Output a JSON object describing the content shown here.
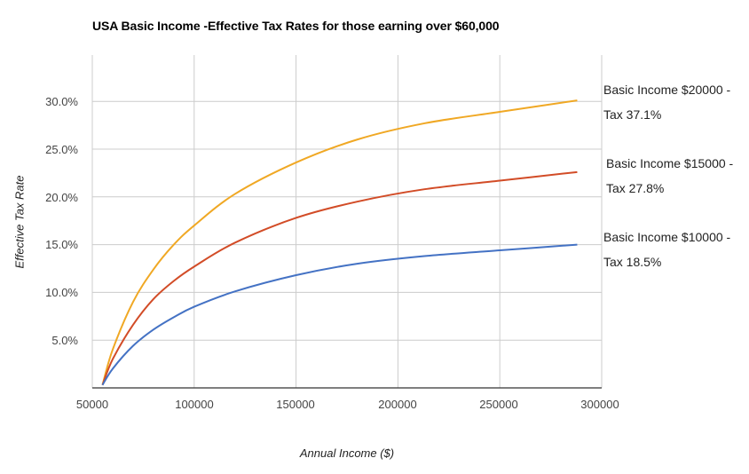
{
  "chart_data": {
    "type": "line",
    "title": "USA Basic Income -Effective Tax Rates for those earning over $60,000",
    "xlabel": "Annual Income ($)",
    "ylabel": "Effective Tax Rate",
    "xlim": [
      50000,
      300000
    ],
    "ylim": [
      0,
      32.5
    ],
    "x_ticks": [
      "50000",
      "100000",
      "150000",
      "200000",
      "250000",
      "300000"
    ],
    "y_ticks": [
      "5.0%",
      "10.0%",
      "15.0%",
      "20.0%",
      "25.0%",
      "30.0%"
    ],
    "grid": true,
    "legend_position": "right (inline annotations)",
    "series": [
      {
        "name": "Basic Income $20000 - Tax 37.1%",
        "color": "#f0a824",
        "x": [
          55000,
          60000,
          70000,
          80000,
          90000,
          100000,
          120000,
          150000,
          180000,
          213000,
          250000,
          288000
        ],
        "values": [
          0.3,
          4.0,
          9.0,
          12.4,
          15.0,
          17.0,
          20.3,
          23.6,
          26.0,
          27.7,
          28.9,
          30.1
        ]
      },
      {
        "name": "Basic Income $15000 - Tax 27.8%",
        "color": "#d24c27",
        "x": [
          55000,
          60000,
          70000,
          80000,
          90000,
          100000,
          120000,
          150000,
          180000,
          213000,
          250000,
          288000
        ],
        "values": [
          0.3,
          3.0,
          6.6,
          9.3,
          11.2,
          12.7,
          15.2,
          17.8,
          19.5,
          20.8,
          21.7,
          22.6
        ]
      },
      {
        "name": "Basic Income $10000 - Tax 18.5%",
        "color": "#4472c4",
        "x": [
          55000,
          60000,
          70000,
          80000,
          90000,
          100000,
          120000,
          150000,
          180000,
          213000,
          250000,
          288000
        ],
        "values": [
          0.3,
          2.0,
          4.4,
          6.1,
          7.4,
          8.5,
          10.1,
          11.8,
          13.0,
          13.8,
          14.4,
          15.0
        ]
      }
    ],
    "annotations": [
      {
        "line1": "Basic Income $20000 -",
        "line2": "Tax 37.1%"
      },
      {
        "line1": "Basic Income $15000 -",
        "line2": "Tax 27.8%"
      },
      {
        "line1": "Basic Income $10000 -",
        "line2": "Tax 18.5%"
      }
    ]
  }
}
